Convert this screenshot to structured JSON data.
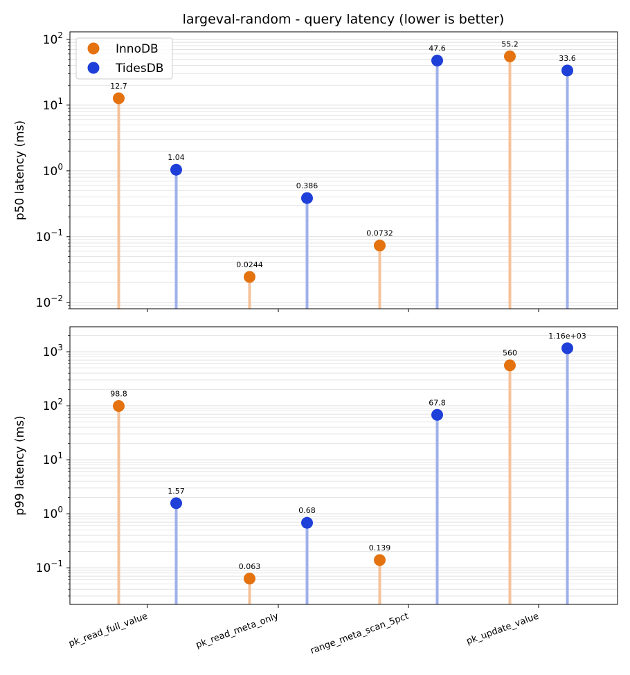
{
  "figure": {
    "title": "largeval-random - query latency (lower is better)",
    "legend": [
      "InnoDB",
      "TidesDB"
    ]
  },
  "colors": {
    "InnoDB": "#e3720f",
    "TidesDB": "#1f3fd9",
    "InnoDB_stem": "#f4c29a",
    "TidesDB_stem": "#9fb0ea",
    "grid": "#dddddd"
  },
  "chart_data": [
    {
      "type": "lollipop",
      "scale": "log",
      "ylabel": "p50 latency (ms)",
      "ylim": [
        0.008,
        130
      ],
      "yticks": [
        "10^-2",
        "10^-1",
        "10^0",
        "10^1",
        "10^2"
      ],
      "categories": [
        "pk_read_full_value",
        "pk_read_meta_only",
        "range_meta_scan_5pct",
        "pk_update_value"
      ],
      "legend_position": "upper-left",
      "grid": true,
      "series": [
        {
          "name": "InnoDB",
          "values": [
            12.7,
            0.0244,
            0.0732,
            55.2
          ],
          "labels": [
            "12.7",
            "0.0244",
            "0.0732",
            "55.2"
          ]
        },
        {
          "name": "TidesDB",
          "values": [
            1.04,
            0.386,
            47.6,
            33.6
          ],
          "labels": [
            "1.04",
            "0.386",
            "47.6",
            "33.6"
          ]
        }
      ]
    },
    {
      "type": "lollipop",
      "scale": "log",
      "ylabel": "p99 latency (ms)",
      "ylim": [
        0.021,
        2900
      ],
      "yticks": [
        "10^-1",
        "10^0",
        "10^1",
        "10^2",
        "10^3"
      ],
      "categories": [
        "pk_read_full_value",
        "pk_read_meta_only",
        "range_meta_scan_5pct",
        "pk_update_value"
      ],
      "grid": true,
      "series": [
        {
          "name": "InnoDB",
          "values": [
            98.8,
            0.063,
            0.139,
            560
          ],
          "labels": [
            "98.8",
            "0.063",
            "0.139",
            "560"
          ]
        },
        {
          "name": "TidesDB",
          "values": [
            1.57,
            0.68,
            67.8,
            1160
          ],
          "labels": [
            "1.57",
            "0.68",
            "67.8",
            "1.16e+03"
          ]
        }
      ]
    }
  ]
}
